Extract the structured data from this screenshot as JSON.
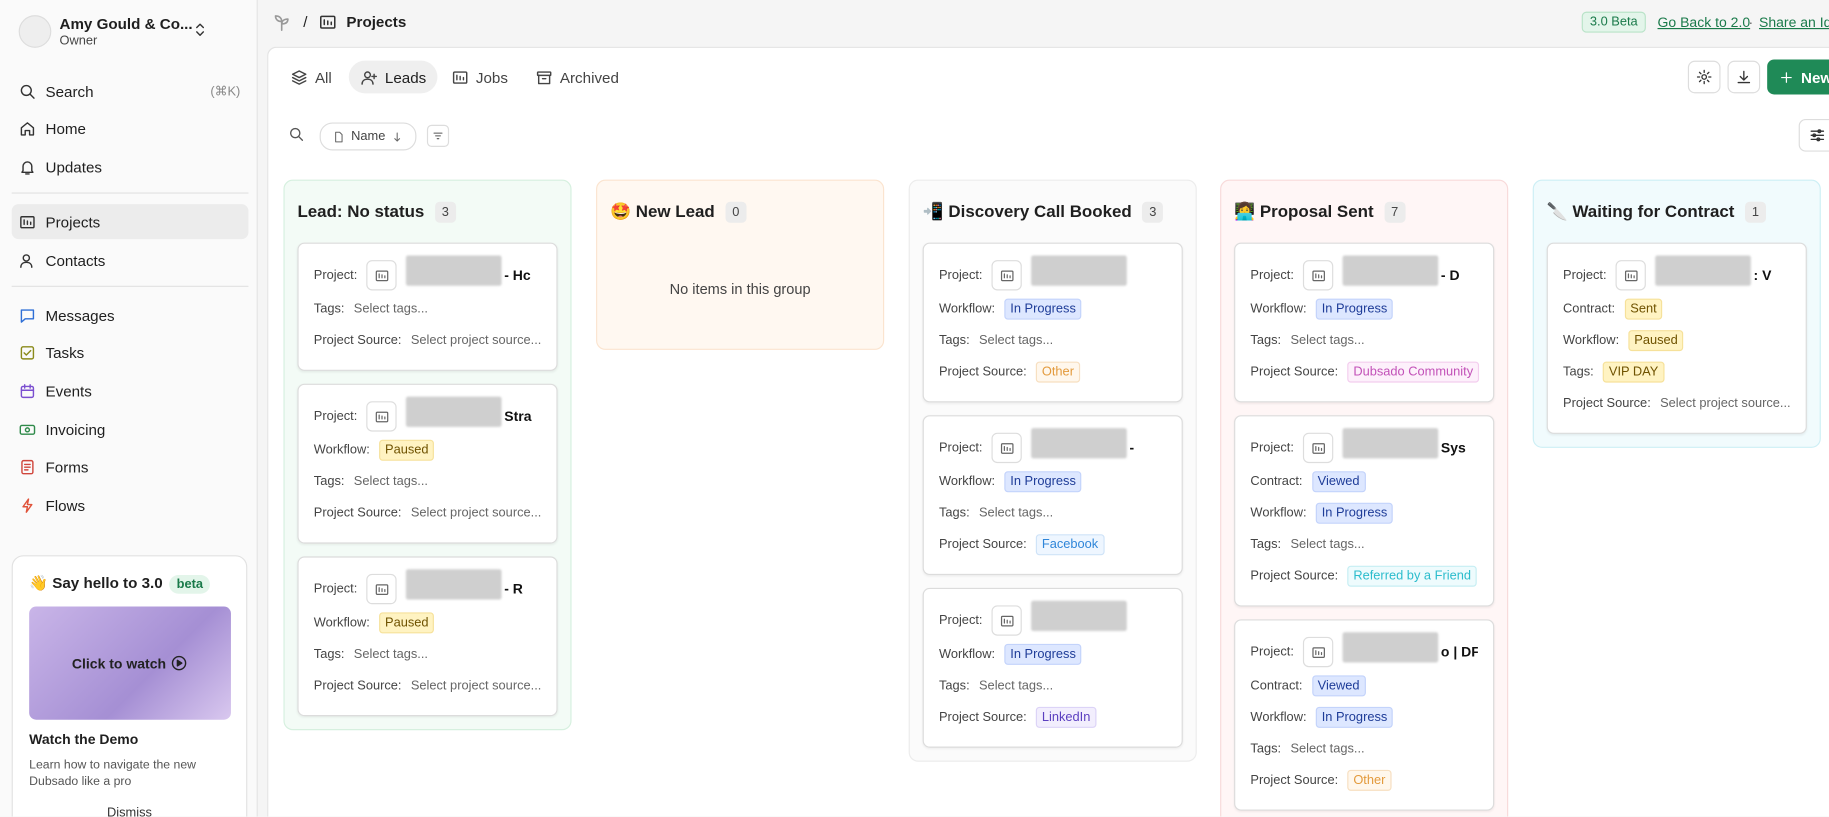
{
  "account": {
    "name": "Amy Gould & Co...",
    "role": "Owner"
  },
  "sidebar": {
    "search": {
      "label": "Search",
      "shortcut": "(⌘K)"
    },
    "groups": [
      [
        "Home",
        "Updates"
      ],
      [
        "Projects",
        "Contacts"
      ],
      [
        "Messages",
        "Tasks",
        "Events",
        "Invoicing",
        "Forms",
        "Flows"
      ]
    ],
    "active": "Projects"
  },
  "promo": {
    "title": "👋 Say hello to 3.0",
    "badge": "beta",
    "video_label": "Click to watch",
    "heading": "Watch the Demo",
    "description": "Learn how to navigate the new Dubsado like a pro",
    "dismiss": "Dismiss"
  },
  "header": {
    "separator": "/",
    "page": "Projects",
    "version_badge": "3.0 Beta",
    "links": [
      "Go Back to 2.0",
      "Share an Idea"
    ],
    "link_separator": "·"
  },
  "tabs": {
    "items": [
      "All",
      "Leads",
      "Jobs",
      "Archived"
    ],
    "active": "Leads",
    "new_button": "New"
  },
  "filter": {
    "sort": "Name"
  },
  "board": {
    "columns": [
      {
        "title": "Lead: No status",
        "count": "3",
        "tone": "green",
        "cards": [
          [
            {
              "label": "Project:",
              "kind": "project",
              "value": "- Hc"
            },
            {
              "label": "Tags:",
              "kind": "placeholder",
              "value": "Select tags..."
            },
            {
              "label": "Project Source:",
              "kind": "placeholder",
              "value": "Select project source..."
            }
          ],
          [
            {
              "label": "Project:",
              "kind": "project",
              "value": "Stra"
            },
            {
              "label": "Workflow:",
              "kind": "badge",
              "tone": "yellow",
              "value": "Paused"
            },
            {
              "label": "Tags:",
              "kind": "placeholder",
              "value": "Select tags..."
            },
            {
              "label": "Project Source:",
              "kind": "placeholder",
              "value": "Select project source..."
            }
          ],
          [
            {
              "label": "Project:",
              "kind": "project",
              "value": "- R"
            },
            {
              "label": "Workflow:",
              "kind": "badge",
              "tone": "yellow",
              "value": "Paused"
            },
            {
              "label": "Tags:",
              "kind": "placeholder",
              "value": "Select tags..."
            },
            {
              "label": "Project Source:",
              "kind": "placeholder",
              "value": "Select project source..."
            }
          ]
        ]
      },
      {
        "title": "🤩 New Lead",
        "count": "0",
        "tone": "orange",
        "empty": "No items in this group",
        "cards": []
      },
      {
        "title": "📲 Discovery Call Booked",
        "count": "3",
        "tone": "gray",
        "cards": [
          [
            {
              "label": "Project:",
              "kind": "project"
            },
            {
              "label": "Workflow:",
              "kind": "badge",
              "tone": "blue",
              "value": "In Progress"
            },
            {
              "label": "Tags:",
              "kind": "placeholder",
              "value": "Select tags..."
            },
            {
              "label": "Project Source:",
              "kind": "badge",
              "tone": "orange",
              "value": "Other"
            }
          ],
          [
            {
              "label": "Project:",
              "kind": "project",
              "value": "-"
            },
            {
              "label": "Workflow:",
              "kind": "badge",
              "tone": "blue",
              "value": "In Progress"
            },
            {
              "label": "Tags:",
              "kind": "placeholder",
              "value": "Select tags..."
            },
            {
              "label": "Project Source:",
              "kind": "badge",
              "tone": "sky",
              "value": "Facebook"
            }
          ],
          [
            {
              "label": "Project:",
              "kind": "project"
            },
            {
              "label": "Workflow:",
              "kind": "badge",
              "tone": "blue",
              "value": "In Progress"
            },
            {
              "label": "Tags:",
              "kind": "placeholder",
              "value": "Select tags..."
            },
            {
              "label": "Project Source:",
              "kind": "badge",
              "tone": "purple",
              "value": "LinkedIn"
            }
          ]
        ]
      },
      {
        "title": "👩‍💻 Proposal Sent",
        "count": "7",
        "tone": "pink",
        "cards": [
          [
            {
              "label": "Project:",
              "kind": "project",
              "value": "- D"
            },
            {
              "label": "Workflow:",
              "kind": "badge",
              "tone": "blue",
              "value": "In Progress"
            },
            {
              "label": "Tags:",
              "kind": "placeholder",
              "value": "Select tags..."
            },
            {
              "label": "Project Source:",
              "kind": "badge",
              "tone": "pink",
              "value": "Dubsado Community"
            }
          ],
          [
            {
              "label": "Project:",
              "kind": "project",
              "value": "Sys"
            },
            {
              "label": "Contract:",
              "kind": "badge",
              "tone": "blue",
              "value": "Viewed"
            },
            {
              "label": "Workflow:",
              "kind": "badge",
              "tone": "blue",
              "value": "In Progress"
            },
            {
              "label": "Tags:",
              "kind": "placeholder",
              "value": "Select tags..."
            },
            {
              "label": "Project Source:",
              "kind": "badge",
              "tone": "cyan",
              "value": "Referred by a Friend"
            }
          ],
          [
            {
              "label": "Project:",
              "kind": "project",
              "value": "o | DFY"
            },
            {
              "label": "Contract:",
              "kind": "badge",
              "tone": "blue",
              "value": "Viewed"
            },
            {
              "label": "Workflow:",
              "kind": "badge",
              "tone": "blue",
              "value": "In Progress"
            },
            {
              "label": "Tags:",
              "kind": "placeholder",
              "value": "Select tags..."
            },
            {
              "label": "Project Source:",
              "kind": "badge",
              "tone": "orange",
              "value": "Other"
            }
          ]
        ]
      },
      {
        "title": "🔪 Waiting for Contract",
        "count": "1",
        "tone": "cyan",
        "cards": [
          [
            {
              "label": "Project:",
              "kind": "project",
              "value": ": V"
            },
            {
              "label": "Contract:",
              "kind": "badge",
              "tone": "yellow",
              "value": "Sent"
            },
            {
              "label": "Workflow:",
              "kind": "badge",
              "tone": "yellow",
              "value": "Paused"
            },
            {
              "label": "Tags:",
              "kind": "badge",
              "tone": "yellow",
              "value": "VIP DAY"
            },
            {
              "label": "Project Source:",
              "kind": "placeholder",
              "value": "Select project source..."
            }
          ]
        ]
      }
    ]
  }
}
